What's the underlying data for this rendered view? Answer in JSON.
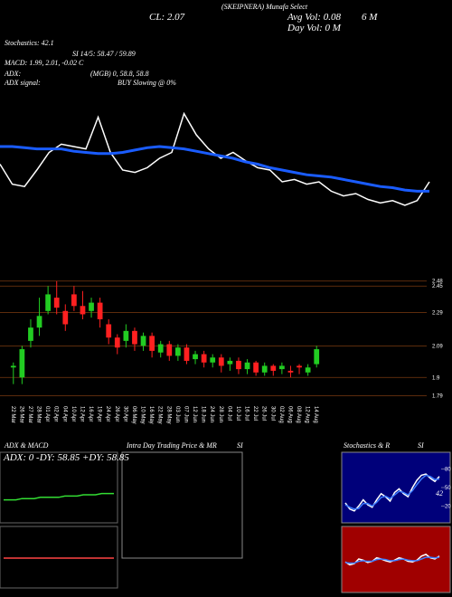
{
  "labels": [
    "SI",
    "SI"
  ],
  "chart_data": [
    {
      "type": "line",
      "annotations": [
        "(SKEIPNERA) Munafa Select",
        "Avg Vol: 0.08",
        "6   M",
        "Day Vol: 0   M",
        "CL: 2.07",
        "Stochastics: 42.1",
        "SI 14/5: 58.47 / 59.89",
        "MACD: 1.99, 2.01, -0.02  C",
        "ADX:",
        "(MGB) 0, 58.8, 58.8",
        "ADX  signal:",
        "BUY Slowing @ 0%"
      ],
      "ylim": [
        0,
        100
      ],
      "series": [
        {
          "color": "#ffffff",
          "values": [
            45,
            28,
            26,
            40,
            55,
            62,
            60,
            58,
            85,
            55,
            40,
            38,
            42,
            50,
            55,
            88,
            70,
            58,
            50,
            55,
            48,
            42,
            40,
            30,
            32,
            28,
            30,
            22,
            18,
            20,
            15,
            12,
            14,
            10,
            14,
            30
          ]
        },
        {
          "color": "#1a5cff",
          "values": [
            60,
            60,
            59,
            58,
            58,
            58,
            56,
            55,
            54,
            54,
            55,
            57,
            59,
            60,
            59,
            58,
            56,
            54,
            52,
            50,
            47,
            45,
            42,
            40,
            38,
            36,
            35,
            34,
            32,
            30,
            28,
            26,
            25,
            23,
            22,
            22
          ]
        }
      ]
    },
    {
      "type": "candlestick",
      "categories": [
        "22 Mar",
        "26 Mar",
        "27 Mar",
        "28 Mar",
        "01 Apr",
        "02 Apr",
        "04 Apr",
        "10 Apr",
        "12 Apr",
        "16 Apr",
        "19 Apr",
        "24 Apr",
        "26 Apr",
        "30 Apr",
        "06 May",
        "10 May",
        "16 May",
        "22 May",
        "28 May",
        "03 Jun",
        "07 Jun",
        "12 Jun",
        "18 Jun",
        "24 Jun",
        "28 Jun",
        "04 Jul",
        "10 Jul",
        "16 Jul",
        "22 Jul",
        "26 Jul",
        "30 Jul",
        "02 Aug",
        "06 Aug",
        "08 Aug",
        "12 Aug",
        "14 Aug"
      ],
      "open": [
        1.96,
        1.9,
        2.12,
        2.2,
        2.3,
        2.38,
        2.3,
        2.4,
        2.33,
        2.3,
        2.35,
        2.22,
        2.14,
        2.12,
        2.18,
        2.09,
        2.15,
        2.05,
        2.1,
        2.03,
        2.08,
        2.01,
        2.04,
        1.99,
        2.02,
        1.98,
        2.0,
        1.95,
        1.99,
        1.93,
        1.97,
        1.95,
        1.94,
        1.97,
        1.93,
        1.98
      ],
      "high": [
        1.99,
        2.09,
        2.25,
        2.38,
        2.45,
        2.48,
        2.34,
        2.45,
        2.42,
        2.38,
        2.38,
        2.25,
        2.16,
        2.22,
        2.2,
        2.17,
        2.17,
        2.12,
        2.12,
        2.1,
        2.1,
        2.06,
        2.06,
        2.04,
        2.04,
        2.02,
        2.02,
        2.01,
        2.0,
        1.99,
        1.98,
        1.99,
        1.97,
        1.98,
        1.98,
        2.09
      ],
      "low": [
        1.86,
        1.86,
        2.08,
        2.15,
        2.28,
        2.28,
        2.18,
        2.3,
        2.25,
        2.26,
        2.2,
        2.1,
        2.04,
        2.08,
        2.06,
        2.06,
        2.02,
        2.02,
        2.0,
        2.0,
        1.98,
        1.98,
        1.96,
        1.96,
        1.93,
        1.94,
        1.92,
        1.92,
        1.91,
        1.91,
        1.91,
        1.92,
        1.9,
        1.92,
        1.91,
        1.96
      ],
      "close": [
        1.97,
        2.07,
        2.2,
        2.27,
        2.4,
        2.32,
        2.22,
        2.33,
        2.28,
        2.35,
        2.25,
        2.14,
        2.08,
        2.18,
        2.1,
        2.15,
        2.06,
        2.1,
        2.03,
        2.08,
        2.0,
        2.04,
        1.99,
        2.02,
        1.97,
        2.0,
        1.95,
        1.99,
        1.93,
        1.97,
        1.94,
        1.97,
        1.93,
        1.96,
        1.96,
        2.07
      ],
      "up_color": "#22cc22",
      "down_color": "#ff2020",
      "ylim": [
        1.76,
        2.62
      ],
      "yticks": [
        2.48,
        2.45,
        2.29,
        2.09,
        1.9,
        1.79
      ],
      "grid": true
    },
    {
      "type": "line",
      "title": "ADX  & MACD",
      "annotations": [
        "ADX: 0  -DY: 58.85  +DY: 58.85"
      ],
      "ylim": [
        0,
        100
      ],
      "series": [
        {
          "color": "#33dd33",
          "values": [
            66,
            66,
            66,
            67,
            67,
            67,
            68,
            68,
            68,
            68,
            69,
            69,
            69,
            70,
            70,
            70,
            71,
            71,
            71
          ]
        },
        {
          "color": "#ff4444",
          "values": [
            20,
            20,
            20,
            20,
            20,
            20,
            20,
            20,
            20,
            20,
            20,
            20,
            20,
            20,
            20,
            20,
            20,
            20,
            20
          ]
        }
      ]
    },
    {
      "type": "line",
      "title": "Intra Day Trading Price  & MR",
      "ylim": [
        0,
        100
      ],
      "series": []
    },
    {
      "type": "line",
      "title": "Stochastics & R",
      "annotations": [
        "42"
      ],
      "ylim": [
        0,
        100
      ],
      "yticks": [
        80,
        50,
        20
      ],
      "series": [
        {
          "color": "#ffffff",
          "values": [
            25,
            15,
            12,
            20,
            30,
            22,
            18,
            30,
            40,
            35,
            28,
            42,
            48,
            40,
            35,
            50,
            62,
            70,
            72,
            65,
            60,
            68
          ]
        },
        {
          "color": "#3a7bff",
          "values": [
            22,
            18,
            15,
            16,
            24,
            24,
            20,
            26,
            34,
            36,
            32,
            38,
            44,
            42,
            38,
            45,
            55,
            64,
            70,
            68,
            63,
            64
          ]
        }
      ]
    },
    {
      "type": "line",
      "ylim": [
        0,
        100
      ],
      "series": [
        {
          "color": "#ffffff",
          "values": [
            45,
            40,
            42,
            50,
            48,
            44,
            46,
            52,
            50,
            47,
            45,
            48,
            52,
            50,
            46,
            45,
            48,
            55,
            58,
            52,
            50,
            55
          ]
        },
        {
          "color": "#3a7bff",
          "values": [
            44,
            43,
            43,
            46,
            47,
            46,
            46,
            49,
            50,
            49,
            47,
            47,
            49,
            50,
            48,
            47,
            47,
            50,
            53,
            53,
            52,
            53
          ]
        }
      ]
    }
  ]
}
